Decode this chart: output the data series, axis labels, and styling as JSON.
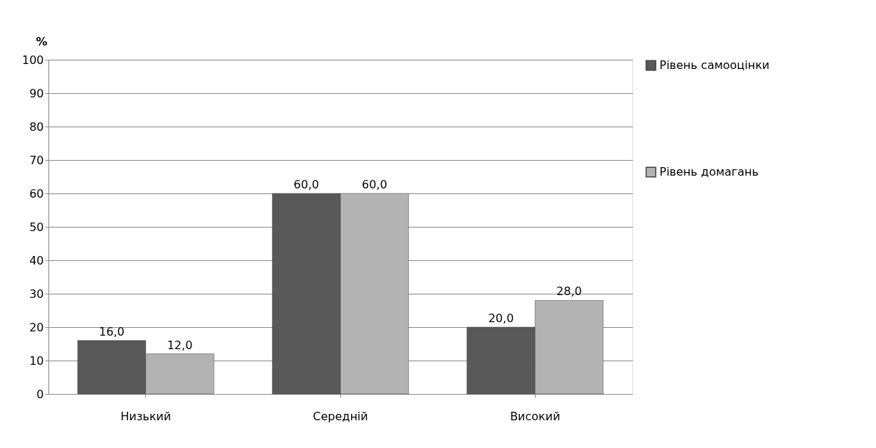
{
  "chart_data": {
    "type": "bar",
    "ylabel": "%",
    "categories": [
      "Низький",
      "Середній",
      "Високий"
    ],
    "series": [
      {
        "name": "Рівень самооцінки",
        "color": "#595959",
        "values": [
          16,
          60,
          20
        ],
        "value_labels": [
          "16,0",
          "60,0",
          "20,0"
        ]
      },
      {
        "name": "Рівень домагань",
        "color": "#b3b3b3",
        "values": [
          12,
          60,
          28
        ],
        "value_labels": [
          "12,0",
          "60,0",
          "28,0"
        ]
      }
    ],
    "ylim": [
      0,
      100
    ],
    "yticks": [
      0,
      10,
      20,
      30,
      40,
      50,
      60,
      70,
      80,
      90,
      100
    ],
    "grid": "y",
    "legend": "right"
  }
}
